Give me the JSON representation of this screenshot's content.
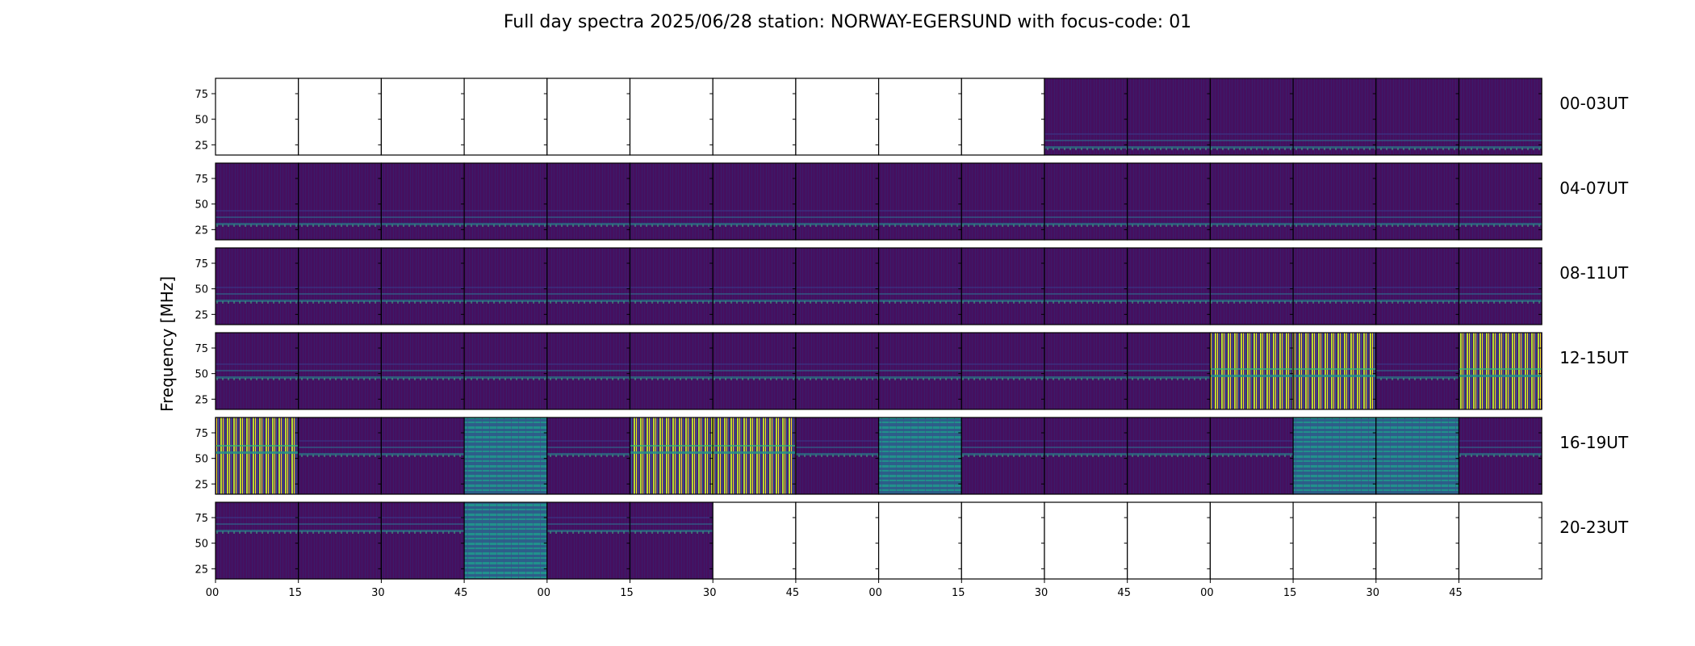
{
  "chart_data": {
    "type": "heatmap",
    "title": "Full day spectra 2025/06/28 station: NORWAY-EGERSUND with focus-code: 01",
    "ylabel": "Frequency [MHz]",
    "xlabel": "",
    "colormap": "viridis",
    "ylim": [
      15,
      90
    ],
    "y_ticks": [
      25,
      50,
      75
    ],
    "x_tick_labels": [
      "00",
      "15",
      "30",
      "45",
      "00",
      "15",
      "30",
      "45",
      "00",
      "15",
      "30",
      "45",
      "00",
      "15",
      "30",
      "45"
    ],
    "columns_per_row": 16,
    "grid": false,
    "rows": [
      {
        "label": "00-03UT",
        "panels": [
          "empty",
          "empty",
          "empty",
          "empty",
          "empty",
          "empty",
          "empty",
          "empty",
          "empty",
          "empty",
          "quiet",
          "quiet",
          "quiet",
          "quiet",
          "quiet",
          "quiet"
        ]
      },
      {
        "label": "04-07UT",
        "panels": [
          "quiet",
          "quiet",
          "quiet",
          "quiet",
          "quiet",
          "quiet",
          "quiet",
          "quiet",
          "quiet",
          "quiet",
          "quiet",
          "quiet",
          "quiet",
          "quiet",
          "quiet",
          "quiet"
        ]
      },
      {
        "label": "08-11UT",
        "panels": [
          "quiet",
          "quiet",
          "quiet",
          "quiet",
          "quiet",
          "quiet",
          "quiet",
          "quiet",
          "quiet",
          "quiet",
          "quiet",
          "quiet",
          "quiet",
          "quiet",
          "quiet",
          "quiet"
        ]
      },
      {
        "label": "12-15UT",
        "panels": [
          "quiet",
          "quiet",
          "quiet",
          "quiet",
          "quiet",
          "quiet",
          "quiet",
          "quiet",
          "quiet",
          "quiet",
          "quiet",
          "quiet",
          "burst",
          "burst",
          "quiet",
          "burst"
        ]
      },
      {
        "label": "16-19UT",
        "panels": [
          "burst",
          "quiet",
          "quiet",
          "banded",
          "quiet",
          "burst",
          "burst",
          "quiet",
          "banded",
          "quiet",
          "quiet",
          "quiet",
          "quiet",
          "banded",
          "banded",
          "quiet"
        ]
      },
      {
        "label": "20-23UT",
        "panels": [
          "quiet",
          "quiet",
          "quiet",
          "banded",
          "quiet",
          "quiet",
          "empty",
          "empty",
          "empty",
          "empty",
          "empty",
          "empty",
          "empty",
          "empty",
          "empty",
          "empty"
        ]
      }
    ]
  }
}
